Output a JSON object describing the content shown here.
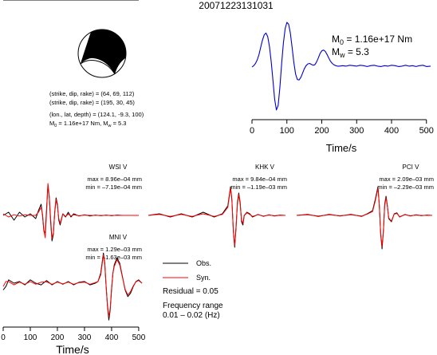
{
  "title": "20071223131031",
  "mechanism": {
    "line1": "(strike, dip, rake) = (64, 69, 112)",
    "line2": "(strike, dip, rake) = (195, 30, 45)",
    "line3": "(lon., lat, depth) = (124.1, -9.3, 100)",
    "line4_pre": "M",
    "line4_sub": "0",
    "line4_mid": " = 1.16e+17 Nm, M",
    "line4_sub2": "w",
    "line4_post": " = 5.3"
  },
  "stf": {
    "m0_main": "M",
    "m0_sub": "0",
    "m0_value": " = 1.16e+17 Nm",
    "mw_main": "M",
    "mw_sub": "w",
    "mw_value": " = 5.3"
  },
  "legend": {
    "obs": "Obs.",
    "syn": "Syn.",
    "residual": "Residual = 0.05",
    "freq_title": "Frequency range",
    "freq_value": "0.01 – 0.02 (Hz)"
  },
  "colors": {
    "stf": "#0000cc",
    "observed": "#000000",
    "synthetic": "#ff0000"
  },
  "chart_data": [
    {
      "type": "line",
      "id": "source-time-function",
      "xlabel": "Time/s",
      "xlim": [
        0,
        512
      ],
      "xticks": [
        0,
        100,
        200,
        300,
        400,
        500
      ],
      "series": [
        {
          "x": [
            0,
            5,
            10,
            15,
            20,
            25,
            30,
            35,
            40,
            45,
            50,
            55,
            60,
            65,
            70,
            75,
            80,
            85,
            90,
            95,
            100,
            105,
            110,
            115,
            120,
            125,
            130,
            135,
            140,
            145,
            150,
            155,
            160,
            165,
            170,
            175,
            180,
            185,
            190,
            195,
            200,
            205,
            210,
            215,
            220,
            225,
            230,
            235,
            240,
            245,
            250,
            260,
            270,
            280,
            290,
            300,
            310,
            320,
            330,
            340,
            350,
            360,
            370,
            380,
            390,
            400,
            410,
            420,
            430,
            440,
            450,
            460,
            470,
            480,
            490,
            500,
            512
          ],
          "y": [
            0.0,
            0.3,
            0.8,
            1.6,
            2.8,
            4.4,
            6.0,
            7.2,
            7.6,
            6.8,
            4.6,
            1.2,
            -3.0,
            -7.2,
            -9.6,
            -8.6,
            -4.5,
            0.8,
            5.4,
            8.6,
            10.0,
            9.6,
            7.6,
            4.4,
            1.0,
            -1.6,
            -2.8,
            -2.9,
            -2.3,
            -1.4,
            -0.4,
            0.3,
            0.7,
            0.8,
            0.6,
            0.4,
            0.5,
            1.1,
            2.0,
            3.0,
            3.6,
            3.8,
            3.5,
            2.8,
            2.0,
            1.3,
            0.8,
            0.5,
            0.3,
            0.2,
            0.2,
            0.3,
            0.2,
            0.4,
            0.3,
            0.2,
            0.4,
            0.3,
            0.1,
            0.3,
            0.4,
            0.2,
            0.1,
            0.3,
            0.2,
            0.4,
            0.3,
            0.1,
            0.2,
            0.4,
            0.2,
            0.3,
            0.1,
            0.3,
            0.4,
            0.1,
            0.2
          ]
        }
      ]
    },
    {
      "type": "line",
      "id": "WSI-V",
      "station": "WSI V",
      "max": "max = 8.96e–04 mm",
      "min": "min = –7.19e–04 mm",
      "xlabel": "Time/s",
      "xlim": [
        0,
        512
      ],
      "xticks": [
        0,
        100,
        200,
        300,
        400,
        500
      ],
      "series": [
        {
          "name": "Obs.",
          "x": [
            0,
            20,
            40,
            60,
            80,
            100,
            120,
            130,
            140,
            145,
            150,
            155,
            160,
            165,
            170,
            175,
            180,
            185,
            190,
            195,
            200,
            205,
            210,
            220,
            230,
            240,
            250,
            260,
            280,
            300,
            320,
            340,
            360,
            380,
            400,
            420,
            440,
            460,
            480,
            500
          ],
          "y": [
            0.0,
            0.1,
            -0.15,
            0.1,
            -0.05,
            0.05,
            -0.1,
            0.15,
            0.35,
            0.0,
            -0.5,
            -0.55,
            0.2,
            0.95,
            0.55,
            -0.2,
            -0.8,
            -0.6,
            0.1,
            0.55,
            0.35,
            -0.15,
            -0.3,
            0.05,
            -0.05,
            0.1,
            -0.05,
            0.05,
            -0.02,
            0.02,
            -0.02,
            0.01,
            -0.01,
            0.01,
            -0.01,
            0.01,
            0.0,
            0.0,
            0.0,
            0.0
          ]
        },
        {
          "name": "Syn.",
          "x": [
            0,
            20,
            40,
            60,
            80,
            100,
            120,
            130,
            140,
            145,
            150,
            155,
            160,
            165,
            170,
            175,
            180,
            185,
            190,
            195,
            200,
            205,
            210,
            220,
            230,
            240,
            250,
            260,
            280,
            300,
            320,
            340,
            360,
            380,
            400,
            420,
            440,
            460,
            480,
            500
          ],
          "y": [
            0.05,
            -0.05,
            0.02,
            -0.02,
            0.02,
            0.0,
            0.0,
            0.1,
            0.25,
            0.05,
            -0.45,
            -0.7,
            0.1,
            1.0,
            0.6,
            -0.1,
            -0.72,
            -0.55,
            0.05,
            0.5,
            0.3,
            -0.1,
            -0.25,
            0.05,
            -0.03,
            0.04,
            -0.02,
            0.02,
            -0.01,
            0.01,
            0.0,
            0.0,
            0.0,
            0.0,
            0.0,
            0.0,
            0.0,
            0.0,
            0.0,
            0.0
          ]
        }
      ]
    },
    {
      "type": "line",
      "id": "KHK-V",
      "station": "KHK V",
      "max": "max = 9.84e–04 mm",
      "min": "min = –1.19e–03 mm",
      "xlim": [
        0,
        512
      ],
      "series": [
        {
          "name": "Obs.",
          "x": [
            0,
            40,
            80,
            120,
            160,
            200,
            240,
            270,
            290,
            300,
            305,
            310,
            315,
            320,
            325,
            330,
            335,
            340,
            345,
            350,
            360,
            370,
            380,
            400,
            420,
            440,
            460,
            480,
            500
          ],
          "y": [
            0.0,
            0.05,
            -0.05,
            0.05,
            -0.05,
            0.1,
            -0.05,
            0.05,
            0.3,
            0.9,
            0.5,
            -0.5,
            -1.0,
            -0.4,
            0.4,
            0.7,
            0.4,
            -0.2,
            -0.3,
            0.0,
            0.1,
            0.05,
            -0.05,
            0.03,
            -0.03,
            0.02,
            -0.02,
            0.01,
            0.0
          ]
        },
        {
          "name": "Syn.",
          "x": [
            0,
            40,
            80,
            120,
            160,
            200,
            240,
            270,
            290,
            300,
            305,
            310,
            315,
            320,
            325,
            330,
            335,
            340,
            345,
            350,
            360,
            370,
            380,
            400,
            420,
            440,
            460,
            480,
            500
          ],
          "y": [
            0.0,
            0.03,
            -0.03,
            0.03,
            -0.03,
            0.05,
            -0.03,
            0.03,
            0.25,
            0.85,
            0.45,
            -0.45,
            -0.95,
            -0.35,
            0.35,
            0.65,
            0.35,
            -0.15,
            -0.25,
            0.0,
            0.08,
            0.03,
            -0.03,
            0.02,
            -0.02,
            0.01,
            -0.01,
            0.0,
            0.0
          ]
        }
      ]
    },
    {
      "type": "line",
      "id": "PCI-V",
      "station": "PCI V",
      "max": "max = 2.09e–03 mm",
      "min": "min = –2.29e–03 mm",
      "xlim": [
        0,
        512
      ],
      "series": [
        {
          "name": "Obs.",
          "x": [
            0,
            40,
            80,
            120,
            160,
            200,
            240,
            260,
            280,
            290,
            300,
            305,
            310,
            315,
            320,
            325,
            330,
            335,
            340,
            350,
            360,
            370,
            380,
            400,
            420,
            440,
            460,
            480,
            500
          ],
          "y": [
            0.0,
            0.03,
            -0.03,
            0.03,
            -0.02,
            0.03,
            -0.03,
            0.05,
            0.15,
            0.5,
            0.9,
            0.3,
            -0.6,
            -1.05,
            -0.5,
            0.35,
            0.6,
            0.3,
            -0.1,
            -0.2,
            0.05,
            0.08,
            -0.05,
            0.03,
            -0.02,
            0.02,
            -0.01,
            0.01,
            0.0
          ]
        },
        {
          "name": "Syn.",
          "x": [
            0,
            40,
            80,
            120,
            160,
            200,
            240,
            260,
            280,
            290,
            300,
            305,
            310,
            315,
            320,
            325,
            330,
            335,
            340,
            350,
            360,
            370,
            380,
            400,
            420,
            440,
            460,
            480,
            500
          ],
          "y": [
            0.0,
            0.02,
            -0.02,
            0.02,
            -0.01,
            0.02,
            -0.02,
            0.04,
            0.12,
            0.45,
            0.85,
            0.3,
            -0.55,
            -0.98,
            -0.45,
            0.3,
            0.55,
            0.28,
            -0.08,
            -0.18,
            0.04,
            0.06,
            -0.04,
            0.02,
            -0.01,
            0.01,
            0.0,
            0.0,
            0.0
          ]
        }
      ]
    },
    {
      "type": "line",
      "id": "MNI-V",
      "station": "MNI V",
      "max": "max = 1.29e–03 mm",
      "min": "min = –1.63e–03 mm",
      "xlabel": "Time/s",
      "xlim": [
        0,
        512
      ],
      "xticks": [
        0,
        100,
        200,
        300,
        400,
        500
      ],
      "series": [
        {
          "name": "Obs.",
          "x": [
            0,
            10,
            20,
            40,
            60,
            80,
            100,
            120,
            140,
            160,
            180,
            200,
            220,
            240,
            260,
            280,
            300,
            320,
            340,
            350,
            360,
            370,
            375,
            380,
            385,
            390,
            395,
            400,
            405,
            410,
            420,
            430,
            440,
            450,
            460,
            470,
            480,
            490,
            500,
            512
          ],
          "y": [
            -0.2,
            -0.1,
            0.1,
            0.0,
            0.05,
            -0.05,
            0.1,
            0.0,
            -0.05,
            0.08,
            -0.05,
            0.05,
            -0.03,
            0.05,
            -0.05,
            0.03,
            0.05,
            -0.05,
            0.0,
            0.05,
            0.3,
            0.9,
            0.6,
            -0.1,
            -0.7,
            -1.1,
            -0.8,
            -0.2,
            0.3,
            0.55,
            0.75,
            0.6,
            0.2,
            -0.2,
            -0.4,
            -0.3,
            -0.1,
            0.05,
            0.1,
            0.0
          ]
        },
        {
          "name": "Syn.",
          "x": [
            0,
            10,
            20,
            40,
            60,
            80,
            100,
            120,
            140,
            160,
            180,
            200,
            220,
            240,
            260,
            280,
            300,
            320,
            340,
            350,
            360,
            370,
            375,
            380,
            385,
            390,
            395,
            400,
            405,
            410,
            420,
            430,
            440,
            450,
            460,
            470,
            480,
            490,
            500,
            512
          ],
          "y": [
            -0.1,
            0.05,
            0.05,
            -0.05,
            0.03,
            -0.03,
            0.05,
            -0.03,
            0.03,
            0.04,
            -0.03,
            0.03,
            -0.02,
            0.03,
            -0.03,
            0.02,
            0.03,
            -0.03,
            0.02,
            0.05,
            0.25,
            0.85,
            0.55,
            -0.1,
            -0.65,
            -1.0,
            -0.75,
            -0.15,
            0.3,
            0.5,
            0.7,
            0.55,
            0.18,
            -0.18,
            -0.35,
            -0.25,
            -0.08,
            0.04,
            0.08,
            0.0
          ]
        }
      ]
    }
  ]
}
